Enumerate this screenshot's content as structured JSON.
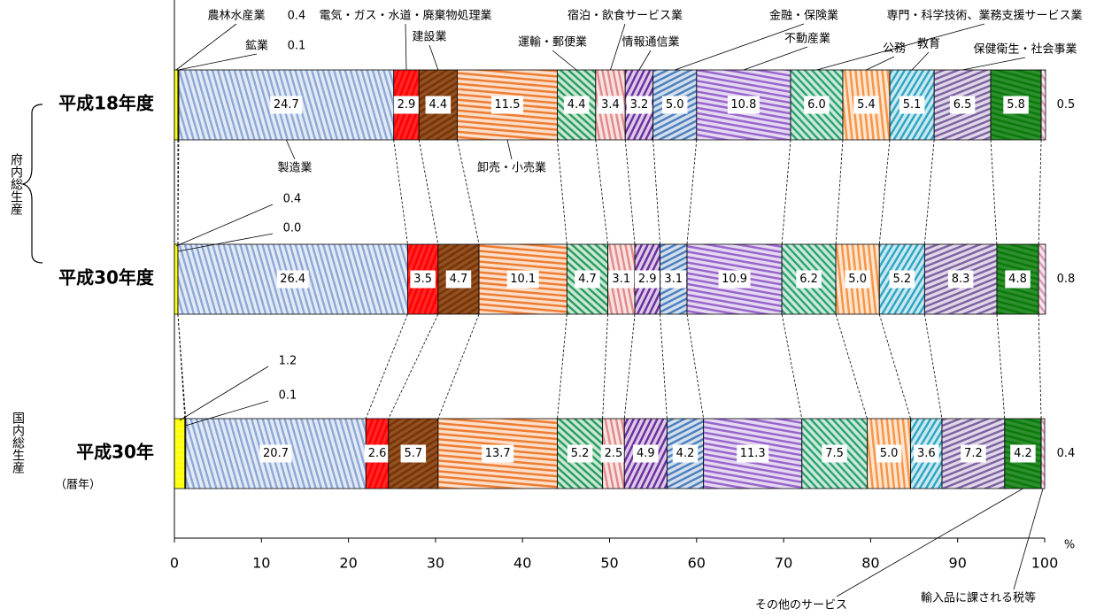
{
  "chart_data": {
    "type": "stacked-bar-horizontal",
    "categories": [
      "平成18年度",
      "平成30年度",
      "平成30年"
    ],
    "category_note": "（暦年）",
    "groups": [
      "府内総生産",
      "国内総生産"
    ],
    "xlim": [
      0,
      100
    ],
    "xticks": [
      0,
      10,
      20,
      30,
      40,
      50,
      60,
      70,
      80,
      90,
      100
    ],
    "x_unit": "%",
    "series": [
      {
        "name": "農林水産業",
        "color": "#ffff00",
        "values": [
          0.4,
          0.4,
          1.2
        ],
        "value_labels": [
          "0.4",
          "0.4",
          "1.2"
        ]
      },
      {
        "name": "鉱業",
        "color": "#808080",
        "values": [
          0.1,
          0.0,
          0.1
        ],
        "value_labels": [
          "0.1",
          "0.0",
          "0.1"
        ]
      },
      {
        "name": "製造業",
        "color": "#8faad8",
        "values": [
          24.7,
          26.4,
          20.7
        ],
        "value_labels": [
          "24.7",
          "26.4",
          "20.7"
        ]
      },
      {
        "name": "電気・ガス・水道・廃棄物処理業",
        "color": "#ff0000",
        "values": [
          2.9,
          3.5,
          2.6
        ],
        "value_labels": [
          "2.9",
          "3.5",
          "2.6"
        ]
      },
      {
        "name": "建設業",
        "color": "#7b3300",
        "values": [
          4.4,
          4.7,
          5.7
        ],
        "value_labels": [
          "4.4",
          "4.7",
          "5.7"
        ]
      },
      {
        "name": "卸売・小売業",
        "color": "#ee7d31",
        "values": [
          11.5,
          10.1,
          13.7
        ],
        "value_labels": [
          "11.5",
          "10.1",
          "13.7"
        ]
      },
      {
        "name": "運輸・郵便業",
        "color": "#2e9e5e",
        "values": [
          4.4,
          4.7,
          5.2
        ],
        "value_labels": [
          "4.4",
          "4.7",
          "5.2"
        ]
      },
      {
        "name": "宿泊・飲食サービス業",
        "color": "#e38c8c",
        "values": [
          3.4,
          3.1,
          2.5
        ],
        "value_labels": [
          "3.4",
          "3.1",
          "2.5"
        ]
      },
      {
        "name": "情報通信業",
        "color": "#7030a0",
        "values": [
          3.2,
          2.9,
          4.9
        ],
        "value_labels": [
          "3.2",
          "2.9",
          "4.9"
        ]
      },
      {
        "name": "金融・保険業",
        "color": "#4f81bd",
        "values": [
          5.0,
          3.1,
          4.2
        ],
        "value_labels": [
          "5.0",
          "3.1",
          "4.2"
        ]
      },
      {
        "name": "不動産業",
        "color": "#9966cc",
        "values": [
          10.8,
          10.9,
          11.3
        ],
        "value_labels": [
          "10.8",
          "10.9",
          "11.3"
        ]
      },
      {
        "name": "専門・科学技術、業務支援サービス業",
        "color": "#2fa572",
        "values": [
          6.0,
          6.2,
          7.5
        ],
        "value_labels": [
          "6.0",
          "6.2",
          "7.5"
        ]
      },
      {
        "name": "公務",
        "color": "#f79646",
        "values": [
          5.4,
          5.0,
          5.0
        ],
        "value_labels": [
          "5.4",
          "5.0",
          "5.0"
        ]
      },
      {
        "name": "教育",
        "color": "#31a6c4",
        "values": [
          5.1,
          5.2,
          3.6
        ],
        "value_labels": [
          "5.1",
          "5.2",
          "3.6"
        ]
      },
      {
        "name": "保健衛生・社会事業",
        "color": "#8064a2",
        "values": [
          6.5,
          8.3,
          7.2
        ],
        "value_labels": [
          "6.5",
          "8.3",
          "7.2"
        ]
      },
      {
        "name": "その他のサービス",
        "color": "#0a7a0a",
        "values": [
          5.8,
          4.8,
          4.2
        ],
        "value_labels": [
          "5.8",
          "4.8",
          "4.2"
        ]
      },
      {
        "name": "輸入品に課される税等",
        "color": "#d99ab8",
        "values": [
          0.5,
          0.8,
          0.4
        ],
        "value_labels": [
          "0.5",
          "0.8",
          "0.4"
        ]
      }
    ]
  }
}
